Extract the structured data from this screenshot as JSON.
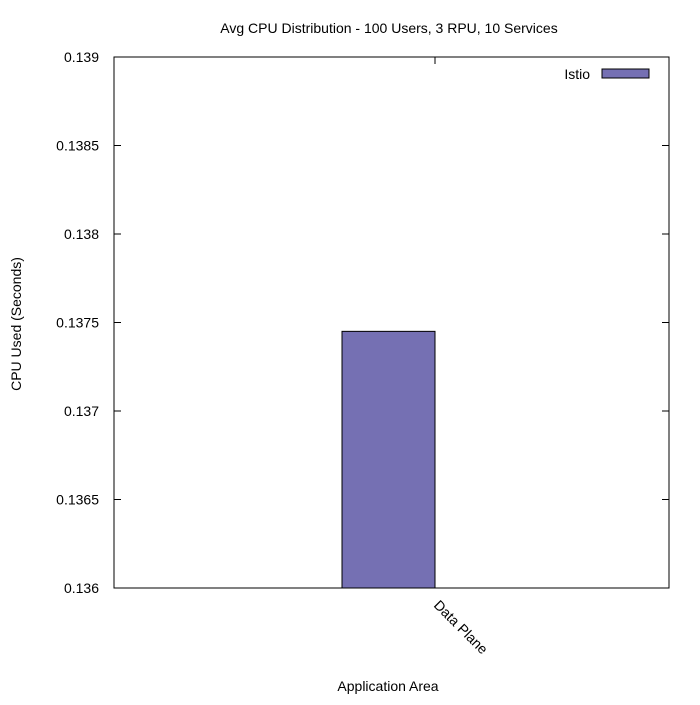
{
  "chart_data": {
    "type": "bar",
    "title": "Avg CPU Distribution - 100 Users, 3 RPU, 10 Services",
    "xlabel": "Application Area",
    "ylabel": "CPU Used (Seconds)",
    "categories": [
      "Data Plane"
    ],
    "series": [
      {
        "name": "Istio",
        "values": [
          0.13745
        ],
        "color": "#7570b3"
      }
    ],
    "ylim": [
      0.136,
      0.139
    ],
    "y_ticks": [
      0.136,
      0.1365,
      0.137,
      0.1375,
      0.138,
      0.1385,
      0.139
    ],
    "y_tick_labels": [
      "0.136",
      "0.1365",
      "0.137",
      "0.1375",
      "0.138",
      "0.1385",
      "0.139"
    ],
    "grid": false,
    "legend_position": "top-right"
  }
}
